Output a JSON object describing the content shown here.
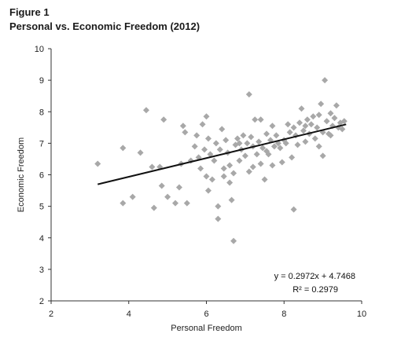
{
  "figure_label": "Figure 1",
  "title": "Personal vs. Economic Freedom (2012)",
  "colors": {
    "points": "#a8a8a8",
    "trend": "#111111",
    "axis": "#333333"
  },
  "chart_data": {
    "type": "scatter",
    "title": "Personal vs. Economic Freedom (2012)",
    "xlabel": "Personal Freedom",
    "ylabel": "Economic Freedom",
    "xlim": [
      2,
      10
    ],
    "ylim": [
      2,
      10
    ],
    "xticks": [
      "2",
      "4",
      "6",
      "8",
      "10"
    ],
    "yticks": [
      "2",
      "3",
      "4",
      "5",
      "6",
      "7",
      "8",
      "9",
      "10"
    ],
    "grid": false,
    "trendline": {
      "slope": 0.2972,
      "intercept": 4.7468,
      "x_range": [
        3.2,
        9.6
      ],
      "equation_label": "y = 0.2972x + 4.7468",
      "r2_label": "R² = 0.2979"
    },
    "points": [
      [
        3.2,
        6.35
      ],
      [
        3.85,
        6.85
      ],
      [
        3.85,
        5.1
      ],
      [
        4.1,
        5.3
      ],
      [
        4.3,
        6.7
      ],
      [
        4.45,
        8.05
      ],
      [
        4.6,
        6.25
      ],
      [
        4.65,
        4.95
      ],
      [
        4.8,
        6.25
      ],
      [
        4.85,
        5.65
      ],
      [
        4.9,
        7.75
      ],
      [
        5.0,
        5.3
      ],
      [
        5.2,
        5.1
      ],
      [
        5.3,
        5.6
      ],
      [
        5.35,
        6.35
      ],
      [
        5.4,
        7.55
      ],
      [
        5.45,
        7.35
      ],
      [
        5.5,
        5.1
      ],
      [
        5.6,
        6.45
      ],
      [
        5.7,
        6.9
      ],
      [
        5.75,
        7.25
      ],
      [
        5.8,
        6.55
      ],
      [
        5.85,
        6.2
      ],
      [
        5.9,
        7.6
      ],
      [
        5.95,
        6.8
      ],
      [
        6.0,
        7.85
      ],
      [
        6.0,
        5.95
      ],
      [
        6.05,
        7.15
      ],
      [
        6.05,
        5.5
      ],
      [
        6.1,
        6.65
      ],
      [
        6.15,
        5.85
      ],
      [
        6.2,
        6.45
      ],
      [
        6.25,
        7.0
      ],
      [
        6.3,
        5.0
      ],
      [
        6.3,
        4.6
      ],
      [
        6.35,
        6.8
      ],
      [
        6.4,
        7.45
      ],
      [
        6.45,
        6.2
      ],
      [
        6.45,
        5.95
      ],
      [
        6.5,
        7.1
      ],
      [
        6.55,
        6.7
      ],
      [
        6.6,
        6.3
      ],
      [
        6.6,
        5.75
      ],
      [
        6.65,
        5.2
      ],
      [
        6.7,
        6.05
      ],
      [
        6.7,
        3.9
      ],
      [
        6.75,
        6.95
      ],
      [
        6.8,
        7.15
      ],
      [
        6.85,
        6.45
      ],
      [
        6.9,
        6.8
      ],
      [
        6.95,
        7.25
      ],
      [
        7.0,
        6.6
      ],
      [
        7.05,
        7.0
      ],
      [
        7.1,
        8.55
      ],
      [
        7.1,
        6.1
      ],
      [
        7.15,
        7.2
      ],
      [
        7.2,
        6.9
      ],
      [
        7.2,
        6.25
      ],
      [
        7.25,
        7.75
      ],
      [
        7.3,
        6.65
      ],
      [
        7.35,
        7.05
      ],
      [
        7.4,
        6.35
      ],
      [
        7.4,
        7.75
      ],
      [
        7.45,
        6.85
      ],
      [
        7.5,
        5.85
      ],
      [
        7.55,
        7.3
      ],
      [
        7.6,
        6.65
      ],
      [
        7.65,
        7.1
      ],
      [
        7.7,
        7.55
      ],
      [
        7.7,
        6.3
      ],
      [
        7.75,
        6.9
      ],
      [
        7.8,
        7.25
      ],
      [
        7.85,
        7.0
      ],
      [
        7.9,
        6.85
      ],
      [
        8.0,
        7.1
      ],
      [
        8.1,
        7.6
      ],
      [
        8.15,
        7.35
      ],
      [
        8.2,
        6.55
      ],
      [
        8.25,
        7.5
      ],
      [
        8.25,
        4.9
      ],
      [
        8.3,
        7.25
      ],
      [
        8.35,
        6.95
      ],
      [
        8.4,
        7.65
      ],
      [
        8.45,
        8.1
      ],
      [
        8.5,
        7.4
      ],
      [
        8.55,
        7.05
      ],
      [
        8.6,
        7.75
      ],
      [
        8.65,
        7.3
      ],
      [
        8.7,
        7.6
      ],
      [
        8.75,
        7.85
      ],
      [
        8.8,
        7.15
      ],
      [
        8.85,
        7.5
      ],
      [
        8.9,
        7.9
      ],
      [
        8.95,
        8.25
      ],
      [
        9.0,
        7.35
      ],
      [
        9.0,
        6.6
      ],
      [
        9.05,
        9.0
      ],
      [
        9.1,
        7.7
      ],
      [
        9.15,
        7.3
      ],
      [
        9.2,
        7.95
      ],
      [
        9.25,
        7.55
      ],
      [
        9.3,
        7.8
      ],
      [
        9.35,
        8.2
      ],
      [
        9.4,
        7.5
      ],
      [
        9.45,
        7.65
      ],
      [
        9.5,
        7.45
      ],
      [
        9.55,
        7.7
      ],
      [
        8.9,
        6.9
      ],
      [
        7.95,
        6.4
      ],
      [
        6.85,
        7.0
      ],
      [
        7.55,
        6.75
      ],
      [
        8.05,
        7.0
      ],
      [
        9.2,
        7.25
      ],
      [
        8.55,
        7.55
      ]
    ]
  }
}
